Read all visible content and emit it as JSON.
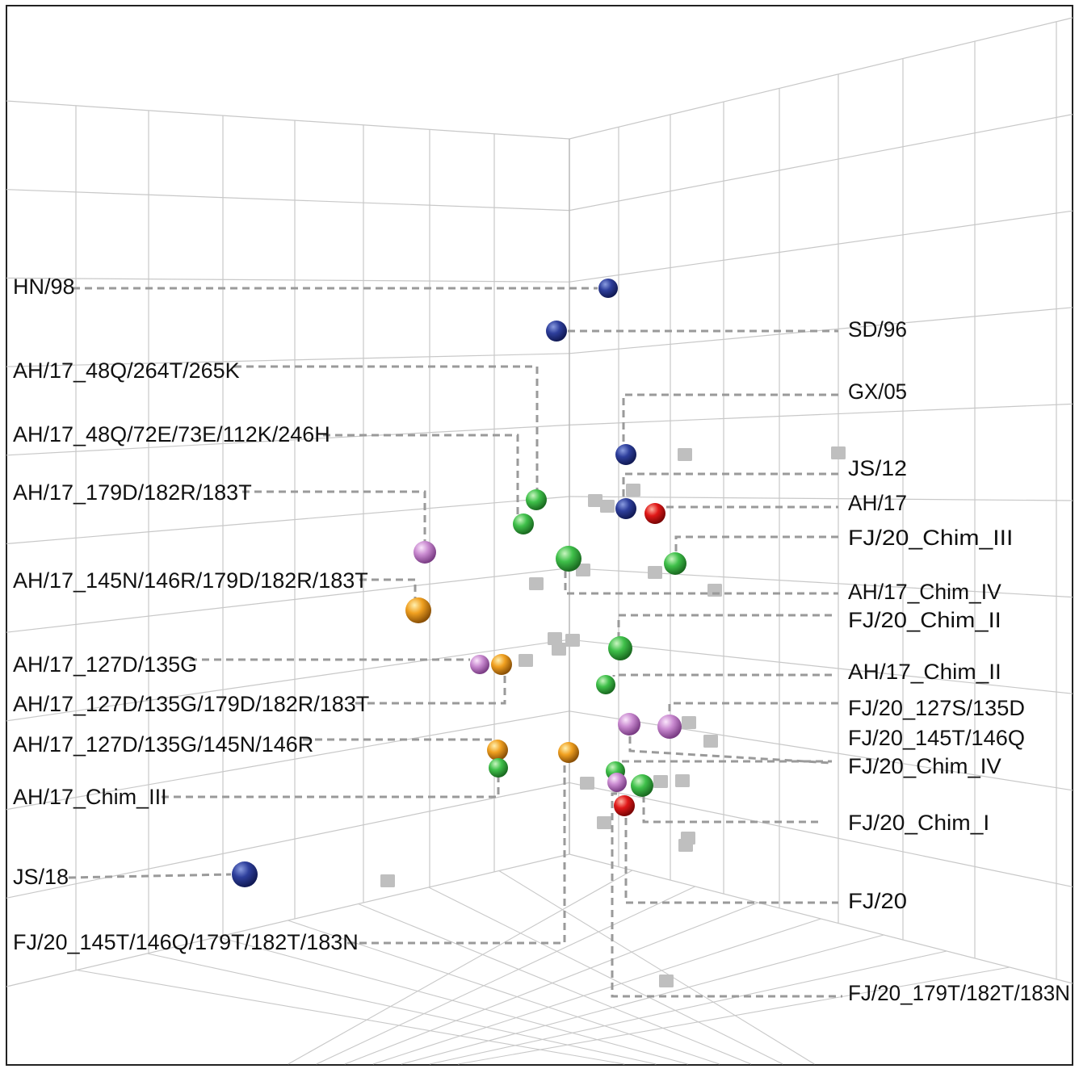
{
  "chart_data": {
    "type": "scatter",
    "title": "",
    "three_dimensional": true,
    "grid": true,
    "legend": "none",
    "colors": {
      "blue": "#2e3f9c",
      "green": "#3fc04a",
      "red": "#e01818",
      "violet": "#c98ad0",
      "orange": "#f0a020",
      "gray_marker": "#bfbfbf",
      "leader_line": "#9a9a9a",
      "grid_line": "#c8c8c8"
    },
    "color_groups": [
      {
        "color": "blue",
        "members": [
          "HN/98",
          "SD/96",
          "GX/05",
          "JS/12",
          "JS/18"
        ]
      },
      {
        "color": "red",
        "members": [
          "AH/17",
          "FJ/20"
        ]
      },
      {
        "color": "green",
        "members": [
          "AH/17_48Q/264T/265K",
          "AH/17_48Q/72E/73E/112K/246H",
          "AH/17_Chim_IV",
          "AH/17_Chim_III",
          "FJ/20_Chim_III",
          "FJ/20_Chim_II",
          "AH/17_Chim_II",
          "FJ/20_Chim_IV",
          "FJ/20_Chim_I"
        ]
      },
      {
        "color": "violet",
        "members": [
          "AH/17_179D/182R/183T",
          "AH/17_127D/135G",
          "FJ/20_127S/135D",
          "FJ/20_145T/146Q",
          "FJ/20_179T/182T/183N"
        ]
      },
      {
        "color": "orange",
        "members": [
          "AH/17_145N/146R/179D/182R/183T",
          "AH/17_127D/135G/179D/182R/183T",
          "AH/17_127D/135G/145N/146R",
          "FJ/20_145T/146Q/179T/182T/183N"
        ]
      }
    ],
    "labels_left": [
      "HN/98",
      "AH/17_48Q/264T/265K",
      "AH/17_48Q/72E/73E/112K/246H",
      "AH/17_179D/182R/183T",
      "AH/17_145N/146R/179D/182R/183T",
      "AH/17_127D/135G",
      "AH/17_127D/135G/179D/182R/183T",
      "AH/17_127D/135G/145N/146R",
      "AH/17_Chim_III",
      "JS/18",
      "FJ/20_145T/146Q/179T/182T/183N"
    ],
    "labels_right": [
      "SD/96",
      "GX/05",
      "JS/12",
      "AH/17",
      "FJ/20_Chim_III",
      "AH/17_Chim_IV",
      "FJ/20_Chim_II",
      "AH/17_Chim_II",
      "FJ/20_127S/135D",
      "FJ/20_145T/146Q",
      "FJ/20_Chim_IV",
      "FJ/20_Chim_I",
      "FJ/20",
      "FJ/20_179T/182T/183N"
    ]
  }
}
